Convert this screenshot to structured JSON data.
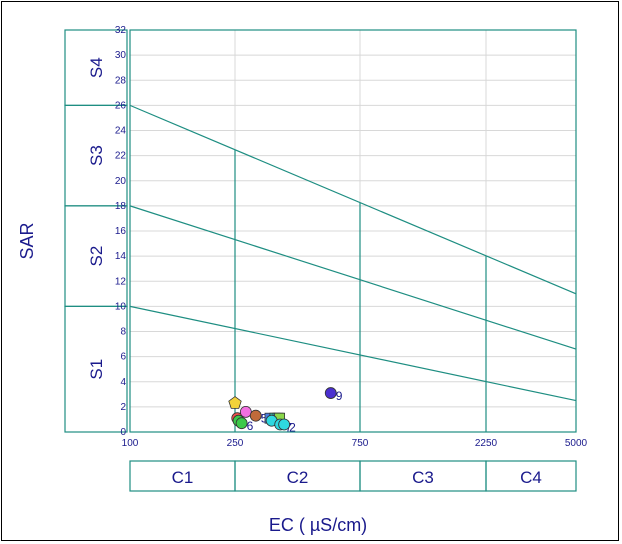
{
  "chart_data": {
    "type": "scatter",
    "title": "",
    "xlabel": "EC  ( µS/cm)",
    "ylabel": "SAR",
    "x_ticks": [
      "100",
      "250",
      "750",
      "2250",
      "5000"
    ],
    "y_ticks": [
      0,
      2,
      4,
      6,
      8,
      10,
      12,
      14,
      16,
      18,
      20,
      22,
      24,
      26,
      28,
      30,
      32
    ],
    "ylim": [
      0,
      32
    ],
    "grid": true,
    "s_classes": [
      "S1",
      "S2",
      "S3",
      "S4"
    ],
    "c_classes": [
      "C1",
      "C2",
      "C3",
      "C4"
    ],
    "boundary_lines": [
      {
        "y_start": 10,
        "y_end": 2.5
      },
      {
        "y_start": 18,
        "y_end": 6.6
      },
      {
        "y_start": 26,
        "y_end": 11
      }
    ],
    "points": [
      {
        "label": "",
        "x": 250,
        "y": 2.3,
        "color": "#f2d33a",
        "shape": "pentagon"
      },
      {
        "label": "",
        "x": 255,
        "y": 1.1,
        "color": "#f0504a",
        "shape": "circle"
      },
      {
        "label": "",
        "x": 258,
        "y": 0.9,
        "color": "#3cc94a",
        "shape": "circle"
      },
      {
        "label": "6",
        "x": 265,
        "y": 0.7,
        "color": "#3cc94a",
        "shape": "circle"
      },
      {
        "label": "",
        "x": 275,
        "y": 1.6,
        "color": "#f26fe0",
        "shape": "circle"
      },
      {
        "label": "5",
        "x": 300,
        "y": 1.3,
        "color": "#c06a3a",
        "shape": "circle"
      },
      {
        "label": "",
        "x": 340,
        "y": 1.1,
        "color": "#4a7fe0",
        "shape": "square"
      },
      {
        "label": "",
        "x": 355,
        "y": 1.1,
        "color": "#2fb8a8",
        "shape": "square"
      },
      {
        "label": "",
        "x": 365,
        "y": 1.1,
        "color": "#2fd0d8",
        "shape": "square"
      },
      {
        "label": "",
        "x": 370,
        "y": 1.1,
        "color": "#8ad84a",
        "shape": "square"
      },
      {
        "label": "1",
        "x": 345,
        "y": 0.9,
        "color": "#2fd8e0",
        "shape": "circle"
      },
      {
        "label": "7",
        "x": 372,
        "y": 0.6,
        "color": "#2fd8e0",
        "shape": "circle"
      },
      {
        "label": "2",
        "x": 385,
        "y": 0.6,
        "color": "#2fd8e0",
        "shape": "circle"
      },
      {
        "label": "9",
        "x": 580,
        "y": 3.1,
        "color": "#4a2fd0",
        "shape": "circle"
      }
    ]
  }
}
